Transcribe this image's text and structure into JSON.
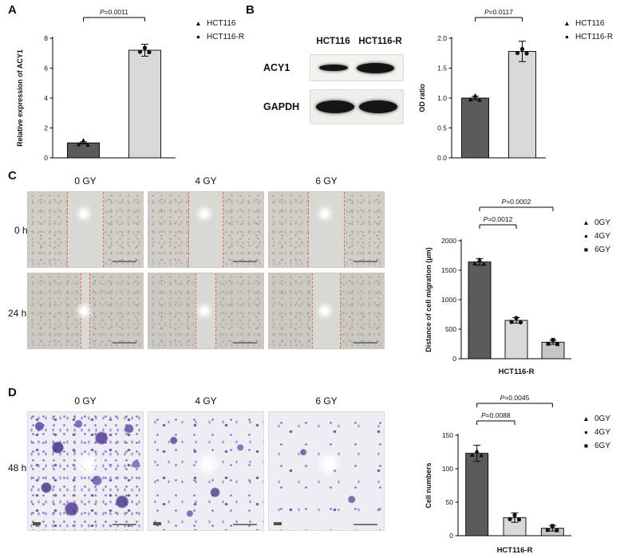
{
  "figure": {
    "panels": {
      "A": {
        "label": "A"
      },
      "B": {
        "label": "B"
      },
      "C": {
        "label": "C",
        "col_headers": [
          "0 GY",
          "4 GY",
          "6 GY"
        ],
        "row_labels": [
          "0 h",
          "24 h"
        ]
      },
      "D": {
        "label": "D",
        "col_headers": [
          "0 GY",
          "4 GY",
          "6 GY"
        ],
        "row_labels": [
          "48 h"
        ]
      }
    },
    "blot": {
      "col_labels": [
        "HCT116",
        "HCT116-R"
      ],
      "row_labels": [
        "ACY1",
        "GAPDH"
      ]
    }
  },
  "chart_data": [
    {
      "id": "A",
      "type": "bar",
      "categories": [
        "HCT116",
        "HCT116-R"
      ],
      "values": [
        1.0,
        7.2
      ],
      "errors": [
        0.07,
        0.4
      ],
      "ylabel": "Relative expression of ACY1",
      "xlabel": "",
      "ylim": [
        0,
        8
      ],
      "yticks": [
        0,
        2,
        4,
        6,
        8
      ],
      "ytick_labels": [
        "0",
        "2",
        "4",
        "6",
        "8"
      ],
      "bar_colors": [
        "#5b5b5b",
        "#d9d9d9"
      ],
      "legend": [
        {
          "marker": "triangle",
          "label": "HCT116"
        },
        {
          "marker": "circle",
          "label": "HCT116-R"
        }
      ],
      "brackets": [
        {
          "from": 0,
          "to": 1,
          "label": "P=0.0011"
        }
      ]
    },
    {
      "id": "B",
      "type": "bar",
      "categories": [
        "HCT116",
        "HCT116-R"
      ],
      "values": [
        1.0,
        1.78
      ],
      "errors": [
        0.03,
        0.17
      ],
      "ylabel": "OD ratio",
      "xlabel": "",
      "ylim": [
        0,
        2
      ],
      "yticks": [
        0,
        0.5,
        1,
        1.5,
        2
      ],
      "ytick_labels": [
        "0.0",
        "0.5",
        "1.0",
        "1.5",
        "2.0"
      ],
      "bar_colors": [
        "#5b5b5b",
        "#d9d9d9"
      ],
      "legend": [
        {
          "marker": "triangle",
          "label": "HCT116"
        },
        {
          "marker": "circle",
          "label": "HCT116-R"
        }
      ],
      "brackets": [
        {
          "from": 0,
          "to": 1,
          "label": "P=0.0117"
        }
      ]
    },
    {
      "id": "C",
      "type": "bar",
      "categories": [
        "0GY",
        "4GY",
        "6GY"
      ],
      "values": [
        1640,
        650,
        280
      ],
      "errors": [
        55,
        45,
        35
      ],
      "ylabel": "Distance of cell migration (μm)",
      "xlabel": "HCT116-R",
      "ylim": [
        0,
        2000
      ],
      "yticks": [
        0,
        500,
        1000,
        1500,
        2000
      ],
      "ytick_labels": [
        "0",
        "500",
        "1000",
        "1500",
        "2000"
      ],
      "bar_colors": [
        "#5b5b5b",
        "#d9d9d9",
        "#c6c6c6"
      ],
      "legend": [
        {
          "marker": "triangle",
          "label": "0GY"
        },
        {
          "marker": "circle",
          "label": "4GY"
        },
        {
          "marker": "square",
          "label": "6GY"
        }
      ],
      "brackets": [
        {
          "from": 0,
          "to": 1,
          "label": "P=0.0012"
        },
        {
          "from": 0,
          "to": 2,
          "label": "P=0.0002"
        }
      ]
    },
    {
      "id": "D",
      "type": "bar",
      "categories": [
        "0GY",
        "4GY",
        "6GY"
      ],
      "values": [
        123,
        27,
        11
      ],
      "errors": [
        12,
        7,
        4
      ],
      "ylabel": "Cell numbers",
      "xlabel": "HCT116-R",
      "ylim": [
        0,
        150
      ],
      "yticks": [
        0,
        50,
        100,
        150
      ],
      "ytick_labels": [
        "0",
        "50",
        "100",
        "150"
      ],
      "bar_colors": [
        "#5b5b5b",
        "#d9d9d9",
        "#c6c6c6"
      ],
      "legend": [
        {
          "marker": "triangle",
          "label": "0GY"
        },
        {
          "marker": "circle",
          "label": "4GY"
        },
        {
          "marker": "square",
          "label": "6GY"
        }
      ],
      "brackets": [
        {
          "from": 0,
          "to": 1,
          "label": "P=0.0088"
        },
        {
          "from": 0,
          "to": 2,
          "label": "P=0.0045"
        }
      ]
    }
  ]
}
